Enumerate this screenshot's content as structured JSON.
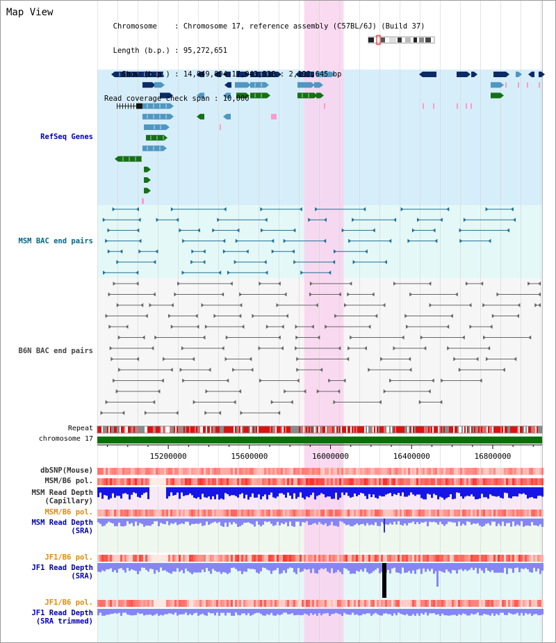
{
  "frame_title": "Map View",
  "info": {
    "chromosome_key": "Chromosome",
    "chromosome_value": "Chromosome 17, reference assembly (C57BL/6J) (Build 37)",
    "length_key": "Length (b.p.)",
    "length_value": "95,272,651",
    "show_key": "Show (b.p.)",
    "show_value": "14,849,894-17,043,538 : 2,193,645 bp",
    "span_key": "Read coverage check span",
    "span_value": "10,000"
  },
  "tracks": {
    "refseq": "RefSeq Genes",
    "msm_bac": "MSM BAC end pairs",
    "b6n_bac": "B6N BAC end pairs",
    "repeat": "Repeat",
    "chromosome": "chromosome 17",
    "dbsnp": "dbSNP(Mouse)",
    "msm_b6_pol_1": "MSM/B6 pol.",
    "msm_read_depth_cap_1": "MSM Read Depth",
    "msm_read_depth_cap_2": "(Capillary)",
    "msm_b6_pol_2": "MSM/B6 pol.",
    "msm_read_depth_sra_1": "MSM Read Depth",
    "msm_read_depth_sra_2": "(SRA)",
    "jf1_b6_pol_1": "JF1/B6 pol.",
    "jf1_read_depth_sra_1": "JF1 Read Depth",
    "jf1_read_depth_sra_2": "(SRA)",
    "jf1_b6_pol_2": "JF1/B6 pol.",
    "jf1_read_depth_trim_1": "JF1 Read Depth",
    "jf1_read_depth_trim_2": "(SRA trimmed)"
  },
  "axis": {
    "ticks": [
      "15200000",
      "15600000",
      "16000000",
      "16400000",
      "16800000"
    ],
    "start": 14849894,
    "end": 17043538
  },
  "highlight_region": [
    15870000,
    16065000
  ],
  "colors": {
    "refseq_bg": "#d6eefa",
    "msm_bg": "#e4f8f8",
    "b6n_bg": "#f6f6f6",
    "highlight": "#f9d3ef",
    "gene_navy": "#0b2a66",
    "gene_blue": "#4f97c2",
    "gene_green": "#167016",
    "gene_pink": "#ff99cc",
    "msm_line": "#1f6f95",
    "b6n_line": "#666666",
    "chromosome_bar": "#077007",
    "depth_blue": "#1515e6",
    "depth_light": "#8585f5",
    "pol_red": "#ee2222"
  }
}
